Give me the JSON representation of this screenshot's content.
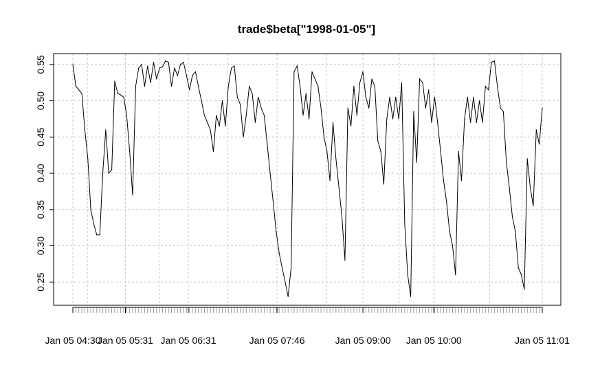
{
  "chart_data": {
    "type": "line",
    "title": "trade$beta[\"1998-01-05\"]",
    "xlabel": "",
    "ylabel": "",
    "x_axis_type": "datetime",
    "x_tick_labels": [
      "Jan 05 04:30",
      "Jan 05 05:31",
      "Jan 05 06:31",
      "Jan 05 07:46",
      "Jan 05 09:00",
      "Jan 05 10:00",
      "Jan 05 11:01"
    ],
    "y_ticks": [
      0.25,
      0.3,
      0.35,
      0.4,
      0.45,
      0.5,
      0.55
    ],
    "y_tick_labels": [
      "0.25",
      "0.30",
      "0.35",
      "0.40",
      "0.45",
      "0.50",
      "0.55"
    ],
    "ylim": [
      0.218,
      0.565
    ],
    "grid": true,
    "line_color": "#000000",
    "grid_color": "#c8c8c8",
    "series": [
      {
        "values": [
          0.55,
          0.52,
          0.515,
          0.51,
          0.46,
          0.42,
          0.35,
          0.33,
          0.315,
          0.315,
          0.4,
          0.46,
          0.4,
          0.405,
          0.527,
          0.51,
          0.508,
          0.505,
          0.48,
          0.43,
          0.37,
          0.52,
          0.545,
          0.55,
          0.52,
          0.548,
          0.525,
          0.553,
          0.53,
          0.545,
          0.547,
          0.555,
          0.553,
          0.52,
          0.545,
          0.535,
          0.55,
          0.553,
          0.535,
          0.515,
          0.535,
          0.54,
          0.52,
          0.5,
          0.48,
          0.47,
          0.46,
          0.43,
          0.48,
          0.465,
          0.5,
          0.465,
          0.52,
          0.545,
          0.548,
          0.505,
          0.495,
          0.45,
          0.48,
          0.52,
          0.51,
          0.47,
          0.505,
          0.49,
          0.48,
          0.44,
          0.4,
          0.36,
          0.32,
          0.29,
          0.27,
          0.25,
          0.23,
          0.27,
          0.54,
          0.548,
          0.52,
          0.48,
          0.51,
          0.475,
          0.54,
          0.53,
          0.52,
          0.49,
          0.45,
          0.43,
          0.39,
          0.47,
          0.42,
          0.38,
          0.34,
          0.28,
          0.49,
          0.465,
          0.52,
          0.48,
          0.525,
          0.54,
          0.505,
          0.49,
          0.53,
          0.52,
          0.445,
          0.43,
          0.385,
          0.475,
          0.505,
          0.475,
          0.505,
          0.475,
          0.525,
          0.33,
          0.26,
          0.23,
          0.485,
          0.415,
          0.53,
          0.525,
          0.49,
          0.515,
          0.47,
          0.505,
          0.47,
          0.43,
          0.39,
          0.36,
          0.32,
          0.3,
          0.26,
          0.43,
          0.39,
          0.475,
          0.505,
          0.47,
          0.505,
          0.47,
          0.5,
          0.47,
          0.52,
          0.515,
          0.553,
          0.555,
          0.52,
          0.49,
          0.485,
          0.415,
          0.38,
          0.34,
          0.32,
          0.27,
          0.26,
          0.24,
          0.42,
          0.38,
          0.355,
          0.46,
          0.44,
          0.49
        ]
      }
    ]
  }
}
